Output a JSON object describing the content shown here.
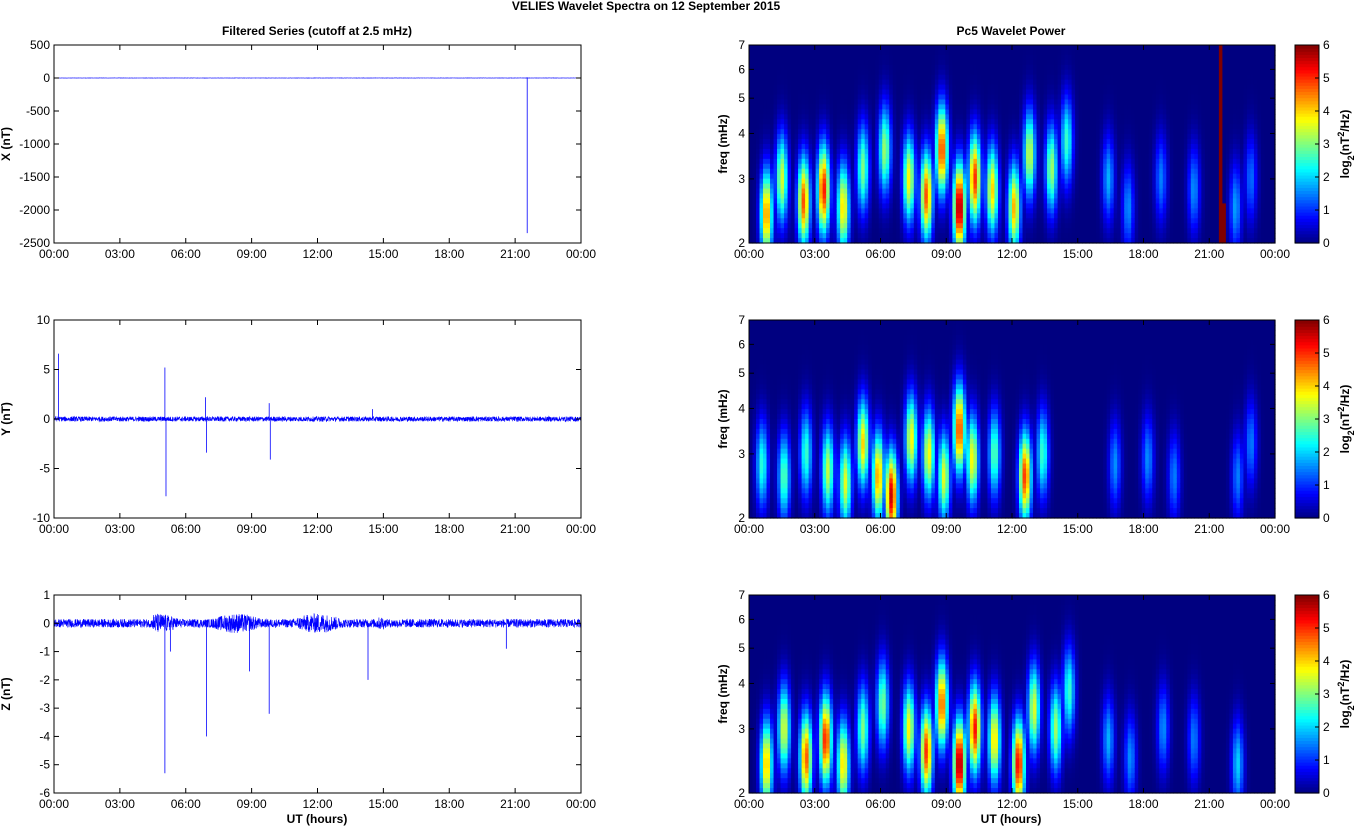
{
  "figure": {
    "suptitle": "VELIES Wavelet Spectra on 12 September 2015",
    "left_title": "Filtered Series (cutoff at 2.5 mHz)",
    "right_title": "Pc5 Wavelet Power",
    "xlabel": "UT (hours)"
  },
  "chart_data": [
    {
      "type": "line",
      "panel": "filtered-x",
      "ylabel": "X (nT)",
      "xlim": [
        0,
        24
      ],
      "ylim": [
        -2500,
        500
      ],
      "yticks": [
        500,
        0,
        -500,
        -1000,
        -1500,
        -2000,
        -2500
      ],
      "xtick_labels": [
        "00:00",
        "03:00",
        "06:00",
        "09:00",
        "12:00",
        "15:00",
        "18:00",
        "21:00",
        "00:00"
      ],
      "series": [
        {
          "color": "#0000ff",
          "baseline": 0,
          "noise": 2,
          "spikes": [
            {
              "x": 21.55,
              "y": -2350
            },
            {
              "x": 21.55,
              "y": 10
            }
          ]
        }
      ]
    },
    {
      "type": "line",
      "panel": "filtered-y",
      "ylabel": "Y (nT)",
      "xlim": [
        0,
        24
      ],
      "ylim": [
        -10,
        10
      ],
      "yticks": [
        10,
        5,
        0,
        -5,
        -10
      ],
      "xtick_labels": [
        "00:00",
        "03:00",
        "06:00",
        "09:00",
        "12:00",
        "15:00",
        "18:00",
        "21:00",
        "00:00"
      ],
      "series": [
        {
          "color": "#0000ff",
          "baseline": 0,
          "noise": 0.25,
          "spikes": [
            {
              "x": 0.2,
              "y": 6.6
            },
            {
              "x": 5.05,
              "y": 5.2
            },
            {
              "x": 5.1,
              "y": -7.8
            },
            {
              "x": 6.9,
              "y": 2.2
            },
            {
              "x": 6.95,
              "y": -3.4
            },
            {
              "x": 9.8,
              "y": 1.6
            },
            {
              "x": 9.85,
              "y": -4.1
            },
            {
              "x": 14.5,
              "y": 1.0
            }
          ]
        }
      ]
    },
    {
      "type": "line",
      "panel": "filtered-z",
      "ylabel": "Z (nT)",
      "xlim": [
        0,
        24
      ],
      "ylim": [
        -6,
        1
      ],
      "yticks": [
        1,
        0,
        -1,
        -2,
        -3,
        -4,
        -5,
        -6
      ],
      "xtick_labels": [
        "00:00",
        "03:00",
        "06:00",
        "09:00",
        "12:00",
        "15:00",
        "18:00",
        "21:00",
        "00:00"
      ],
      "series": [
        {
          "color": "#0000ff",
          "baseline": 0,
          "noise": 0.15,
          "active": [
            [
              4.5,
              15.0,
              0.35
            ]
          ],
          "spikes": [
            {
              "x": 5.05,
              "y": -5.3
            },
            {
              "x": 5.3,
              "y": -1.0
            },
            {
              "x": 6.95,
              "y": -4.0
            },
            {
              "x": 8.9,
              "y": -1.7
            },
            {
              "x": 9.8,
              "y": -3.2
            },
            {
              "x": 14.3,
              "y": -2.0
            },
            {
              "x": 20.6,
              "y": -0.9
            }
          ]
        }
      ]
    },
    {
      "type": "heatmap",
      "panel": "wavelet-x",
      "ylabel": "freq (mHz)",
      "colorbar_label": "log2(nT2/Hz)",
      "xlim": [
        0,
        24
      ],
      "ylim": [
        2,
        7
      ],
      "ylog": true,
      "yticks": [
        2,
        3,
        4,
        5,
        6,
        7
      ],
      "clim": [
        0,
        6
      ],
      "cticks": [
        0,
        1,
        2,
        3,
        4,
        5,
        6
      ],
      "xtick_labels": [
        "00:00",
        "03:00",
        "06:00",
        "09:00",
        "12:00",
        "15:00",
        "18:00",
        "21:00",
        "00:00"
      ],
      "blobs": [
        {
          "t": 0.8,
          "f": 2.4,
          "a": 4.5
        },
        {
          "t": 1.5,
          "f": 3.0,
          "a": 3.5
        },
        {
          "t": 2.5,
          "f": 2.6,
          "a": 4.8
        },
        {
          "t": 3.4,
          "f": 2.8,
          "a": 5.2
        },
        {
          "t": 4.3,
          "f": 2.5,
          "a": 4.0
        },
        {
          "t": 5.2,
          "f": 3.2,
          "a": 3.0
        },
        {
          "t": 6.2,
          "f": 3.6,
          "a": 3.2
        },
        {
          "t": 7.3,
          "f": 3.0,
          "a": 3.8
        },
        {
          "t": 8.1,
          "f": 2.7,
          "a": 4.8
        },
        {
          "t": 8.8,
          "f": 3.6,
          "a": 5.0
        },
        {
          "t": 9.6,
          "f": 2.5,
          "a": 6.0
        },
        {
          "t": 10.3,
          "f": 3.0,
          "a": 5.0
        },
        {
          "t": 11.1,
          "f": 2.8,
          "a": 4.0
        },
        {
          "t": 12.1,
          "f": 2.5,
          "a": 4.2
        },
        {
          "t": 12.8,
          "f": 3.5,
          "a": 3.5
        },
        {
          "t": 13.8,
          "f": 3.2,
          "a": 3.2
        },
        {
          "t": 14.5,
          "f": 3.8,
          "a": 2.6
        },
        {
          "t": 16.4,
          "f": 3.0,
          "a": 1.8
        },
        {
          "t": 17.3,
          "f": 2.5,
          "a": 1.6
        },
        {
          "t": 18.8,
          "f": 3.0,
          "a": 1.5
        },
        {
          "t": 20.3,
          "f": 2.8,
          "a": 1.6
        },
        {
          "t": 22.2,
          "f": 2.5,
          "a": 1.7
        },
        {
          "t": 22.9,
          "f": 3.0,
          "a": 1.4
        }
      ],
      "saturated_band": {
        "t0": 21.4,
        "t1": 21.7
      }
    },
    {
      "type": "heatmap",
      "panel": "wavelet-y",
      "ylabel": "freq (mHz)",
      "colorbar_label": "log2(nT2/Hz)",
      "xlim": [
        0,
        24
      ],
      "ylim": [
        2,
        7
      ],
      "ylog": true,
      "yticks": [
        2,
        3,
        4,
        5,
        6,
        7
      ],
      "clim": [
        0,
        6
      ],
      "cticks": [
        0,
        1,
        2,
        3,
        4,
        5,
        6
      ],
      "xtick_labels": [
        "00:00",
        "03:00",
        "06:00",
        "09:00",
        "12:00",
        "15:00",
        "18:00",
        "21:00",
        "00:00"
      ],
      "blobs": [
        {
          "t": 0.6,
          "f": 2.8,
          "a": 2.5
        },
        {
          "t": 1.6,
          "f": 2.6,
          "a": 2.8
        },
        {
          "t": 2.6,
          "f": 3.0,
          "a": 2.6
        },
        {
          "t": 3.6,
          "f": 2.7,
          "a": 3.4
        },
        {
          "t": 4.4,
          "f": 2.5,
          "a": 3.6
        },
        {
          "t": 5.2,
          "f": 3.2,
          "a": 4.0
        },
        {
          "t": 5.9,
          "f": 2.6,
          "a": 4.4
        },
        {
          "t": 6.5,
          "f": 2.3,
          "a": 5.6
        },
        {
          "t": 7.4,
          "f": 3.3,
          "a": 3.8
        },
        {
          "t": 8.2,
          "f": 3.0,
          "a": 3.8
        },
        {
          "t": 8.9,
          "f": 2.6,
          "a": 3.6
        },
        {
          "t": 9.6,
          "f": 3.5,
          "a": 5.0
        },
        {
          "t": 10.2,
          "f": 2.9,
          "a": 3.8
        },
        {
          "t": 11.2,
          "f": 3.0,
          "a": 2.8
        },
        {
          "t": 12.6,
          "f": 2.6,
          "a": 5.0
        },
        {
          "t": 13.4,
          "f": 3.0,
          "a": 2.6
        },
        {
          "t": 16.7,
          "f": 2.8,
          "a": 1.6
        },
        {
          "t": 18.2,
          "f": 2.9,
          "a": 1.6
        },
        {
          "t": 19.4,
          "f": 2.6,
          "a": 1.5
        },
        {
          "t": 22.3,
          "f": 2.6,
          "a": 1.5
        },
        {
          "t": 22.9,
          "f": 3.2,
          "a": 1.5
        }
      ]
    },
    {
      "type": "heatmap",
      "panel": "wavelet-z",
      "ylabel": "freq (mHz)",
      "colorbar_label": "log2(nT2/Hz)",
      "xlim": [
        0,
        24
      ],
      "ylim": [
        2,
        7
      ],
      "ylog": true,
      "yticks": [
        2,
        3,
        4,
        5,
        6,
        7
      ],
      "clim": [
        0,
        6
      ],
      "cticks": [
        0,
        1,
        2,
        3,
        4,
        5,
        6
      ],
      "xtick_labels": [
        "00:00",
        "03:00",
        "06:00",
        "09:00",
        "12:00",
        "15:00",
        "18:00",
        "21:00",
        "00:00"
      ],
      "blobs": [
        {
          "t": 0.8,
          "f": 2.4,
          "a": 4.2
        },
        {
          "t": 1.6,
          "f": 3.0,
          "a": 3.6
        },
        {
          "t": 2.6,
          "f": 2.5,
          "a": 4.8
        },
        {
          "t": 3.5,
          "f": 2.8,
          "a": 5.2
        },
        {
          "t": 4.3,
          "f": 2.4,
          "a": 4.0
        },
        {
          "t": 5.2,
          "f": 3.0,
          "a": 3.0
        },
        {
          "t": 6.1,
          "f": 3.5,
          "a": 3.0
        },
        {
          "t": 7.3,
          "f": 3.0,
          "a": 3.8
        },
        {
          "t": 8.1,
          "f": 2.6,
          "a": 5.0
        },
        {
          "t": 8.8,
          "f": 3.5,
          "a": 4.8
        },
        {
          "t": 9.6,
          "f": 2.4,
          "a": 6.0
        },
        {
          "t": 10.3,
          "f": 3.0,
          "a": 5.2
        },
        {
          "t": 11.2,
          "f": 2.8,
          "a": 4.0
        },
        {
          "t": 12.3,
          "f": 2.4,
          "a": 5.4
        },
        {
          "t": 13.0,
          "f": 3.4,
          "a": 3.6
        },
        {
          "t": 14.0,
          "f": 3.0,
          "a": 3.2
        },
        {
          "t": 14.6,
          "f": 3.8,
          "a": 2.6
        },
        {
          "t": 16.4,
          "f": 2.8,
          "a": 1.8
        },
        {
          "t": 17.4,
          "f": 2.5,
          "a": 1.6
        },
        {
          "t": 18.9,
          "f": 3.0,
          "a": 1.6
        },
        {
          "t": 20.3,
          "f": 2.8,
          "a": 1.5
        },
        {
          "t": 22.3,
          "f": 2.4,
          "a": 2.0
        }
      ]
    }
  ]
}
